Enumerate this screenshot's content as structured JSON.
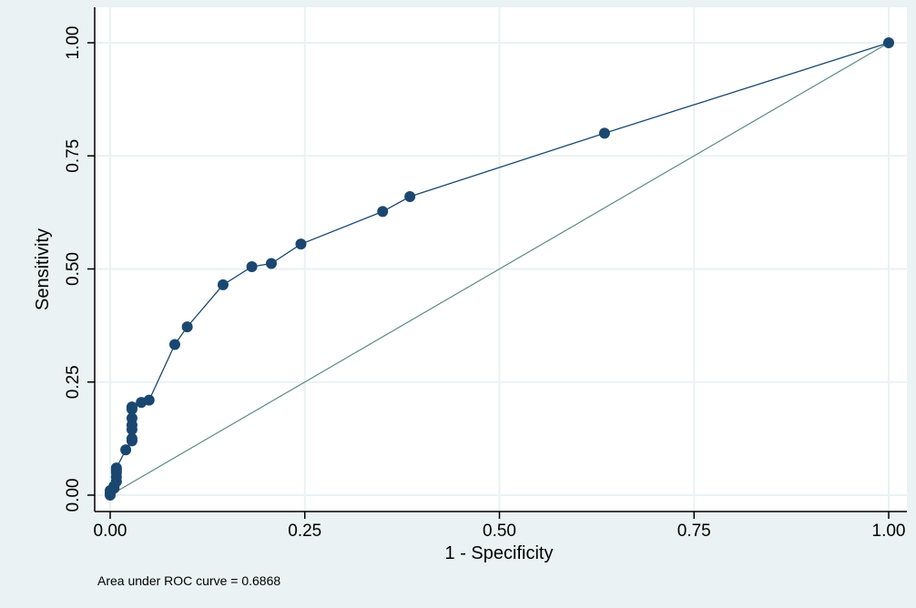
{
  "chart_data": {
    "type": "line",
    "title": "",
    "xlabel": "1 - Specificity",
    "ylabel": "Sensitivity",
    "xlim": [
      0,
      1
    ],
    "ylim": [
      0,
      1
    ],
    "x_ticks": [
      "0.00",
      "0.25",
      "0.50",
      "0.75",
      "1.00"
    ],
    "y_ticks": [
      "0.00",
      "0.25",
      "0.50",
      "0.75",
      "1.00"
    ],
    "grid": true,
    "legend": "none",
    "annotation": "Area under ROC curve = 0.6868",
    "series": [
      {
        "x": [
          0,
          0,
          0,
          0.005,
          0.005,
          0.008,
          0.008,
          0.008,
          0.008,
          0.008,
          0.02,
          0.028,
          0.028,
          0.028,
          0.028,
          0.028,
          0.028,
          0.028,
          0.04,
          0.05,
          0.083,
          0.099,
          0.145,
          0.182,
          0.207,
          0.245,
          0.35,
          0.385,
          0.635,
          1.0
        ],
        "y": [
          0,
          0.005,
          0.01,
          0.015,
          0.02,
          0.03,
          0.04,
          0.05,
          0.055,
          0.06,
          0.1,
          0.12,
          0.125,
          0.145,
          0.155,
          0.17,
          0.19,
          0.195,
          0.205,
          0.21,
          0.333,
          0.372,
          0.465,
          0.505,
          0.512,
          0.555,
          0.627,
          0.66,
          0.8,
          1.0
        ]
      },
      {
        "x": [
          0,
          1
        ],
        "y": [
          0,
          1
        ]
      }
    ],
    "colors": {
      "outer_background": "#eaf2f3",
      "plot_background": "#ffffff",
      "grid": "#eaf2f3",
      "roc_line": "#1a476f",
      "marker": "#1a476f",
      "reference_line": "#5b8a82",
      "axis": "#000000"
    }
  }
}
